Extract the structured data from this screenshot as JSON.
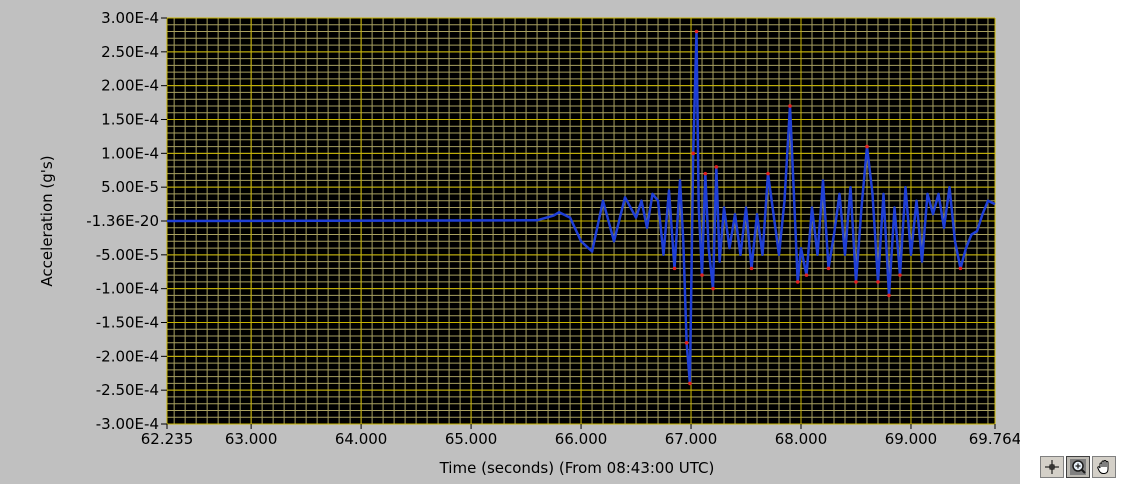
{
  "chart_data": {
    "type": "line",
    "title": "",
    "xlabel": "Time (seconds) (From 08:43:00 UTC)",
    "ylabel": "Acceleration (g's)",
    "xlim": [
      62.235,
      69.764
    ],
    "ylim": [
      -0.0003,
      0.0003
    ],
    "x_tick_values": [
      62.235,
      63.0,
      64.0,
      65.0,
      66.0,
      67.0,
      68.0,
      69.0,
      69.764
    ],
    "x_tick_labels": [
      "62.235",
      "63.000",
      "64.000",
      "65.000",
      "66.000",
      "67.000",
      "68.000",
      "69.000",
      "69.764"
    ],
    "y_tick_values": [
      0.0003,
      0.00025,
      0.0002,
      0.00015,
      0.0001,
      5e-05,
      0,
      -5e-05,
      -0.0001,
      -0.00015,
      -0.0002,
      -0.00025,
      -0.0003
    ],
    "y_tick_labels": [
      "3.00E-4",
      "2.50E-4",
      "2.00E-4",
      "1.50E-4",
      "1.00E-4",
      "5.00E-5",
      "-1.36E-20",
      "-5.00E-5",
      "-1.00E-4",
      "-1.50E-4",
      "-2.00E-4",
      "-2.50E-4",
      "-3.00E-4"
    ],
    "grid": true,
    "colors": {
      "line": "#1f3fd6",
      "peak_marker": "#e02020",
      "plot_background": "#000000",
      "grid_major": "#c8b400",
      "grid_minor": "#a8a060"
    },
    "series": [
      {
        "x": [
          62.235,
          65.6,
          65.75,
          65.8,
          65.9,
          66.0,
          66.1,
          66.2,
          66.3,
          66.4,
          66.5,
          66.55,
          66.6,
          66.65,
          66.7,
          66.75,
          66.8,
          66.85,
          66.9,
          66.93,
          66.96,
          66.99,
          67.02,
          67.05,
          67.07,
          67.1,
          67.13,
          67.16,
          67.2,
          67.23,
          67.26,
          67.3,
          67.35,
          67.4,
          67.45,
          67.5,
          67.55,
          67.6,
          67.65,
          67.7,
          67.75,
          67.8,
          67.85,
          67.9,
          67.93,
          67.97,
          68.0,
          68.05,
          68.1,
          68.15,
          68.2,
          68.25,
          68.3,
          68.35,
          68.4,
          68.45,
          68.5,
          68.55,
          68.6,
          68.65,
          68.7,
          68.75,
          68.8,
          68.85,
          68.9,
          68.95,
          69.0,
          69.05,
          69.1,
          69.15,
          69.2,
          69.25,
          69.3,
          69.35,
          69.4,
          69.45,
          69.5,
          69.55,
          69.6,
          69.65,
          69.7,
          69.764
        ],
        "y": [
          0,
          1e-06,
          8e-06,
          1.3e-05,
          5e-06,
          -3e-05,
          -4.5e-05,
          3e-05,
          -3e-05,
          3.5e-05,
          5e-06,
          3e-05,
          -1e-05,
          4e-05,
          3e-05,
          -5e-05,
          4.5e-05,
          -7e-05,
          6e-05,
          -3e-05,
          -0.00018,
          -0.00024,
          0.0001,
          0.00028,
          2e-05,
          -8e-05,
          7e-05,
          -4e-05,
          -0.0001,
          8e-05,
          -6e-05,
          2e-05,
          -4e-05,
          1e-05,
          -5e-05,
          2e-05,
          -7e-05,
          1e-05,
          -5e-05,
          7e-05,
          1e-05,
          -5e-05,
          3e-05,
          0.00017,
          6e-05,
          -9e-05,
          -4e-05,
          -8e-05,
          2e-05,
          -5e-05,
          6e-05,
          -7e-05,
          -2e-05,
          4e-05,
          -5e-05,
          5e-05,
          -9e-05,
          2e-05,
          0.00011,
          4e-05,
          -9e-05,
          4e-05,
          -0.00011,
          2e-05,
          -8e-05,
          5e-05,
          -5e-05,
          3e-05,
          -6e-05,
          4e-05,
          1e-05,
          4e-05,
          -1e-05,
          5e-05,
          -3e-05,
          -7e-05,
          -4e-05,
          -2e-05,
          -1.5e-05,
          1e-05,
          3e-05,
          2.5e-05
        ]
      }
    ]
  },
  "palette": {
    "tools": [
      {
        "name": "cursor-tool",
        "icon": "crosshair-icon"
      },
      {
        "name": "zoom-tool",
        "icon": "zoom-icon"
      },
      {
        "name": "pan-tool",
        "icon": "hand-icon"
      }
    ]
  }
}
